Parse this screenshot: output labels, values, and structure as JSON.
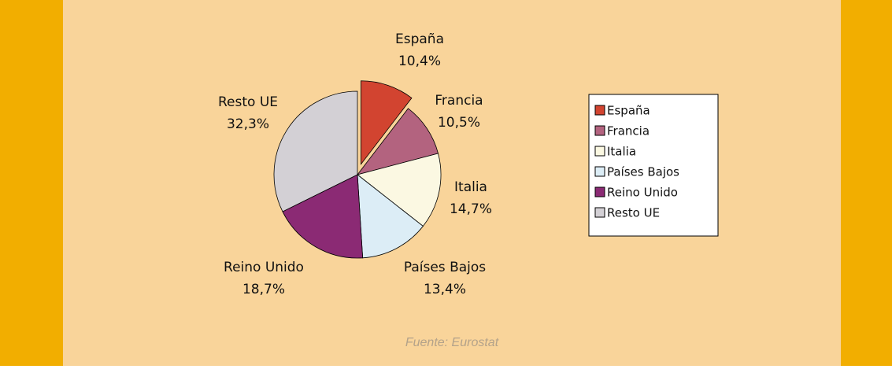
{
  "chart_data": {
    "type": "pie",
    "categories": [
      "España",
      "Francia",
      "Italia",
      "Países Bajos",
      "Reino Unido",
      "Resto UE"
    ],
    "values": [
      10.4,
      10.5,
      14.7,
      13.4,
      18.7,
      32.3
    ],
    "value_labels": [
      "10,4%",
      "10,5%",
      "14,7%",
      "13,4%",
      "18,7%",
      "32,3%"
    ],
    "colors": [
      "#d24430",
      "#b3637f",
      "#fbf8e2",
      "#dcedf6",
      "#8b2a74",
      "#d3d0d5"
    ],
    "exploded": [
      0
    ],
    "legend": "right",
    "source": "Fuente: Eurostat"
  }
}
